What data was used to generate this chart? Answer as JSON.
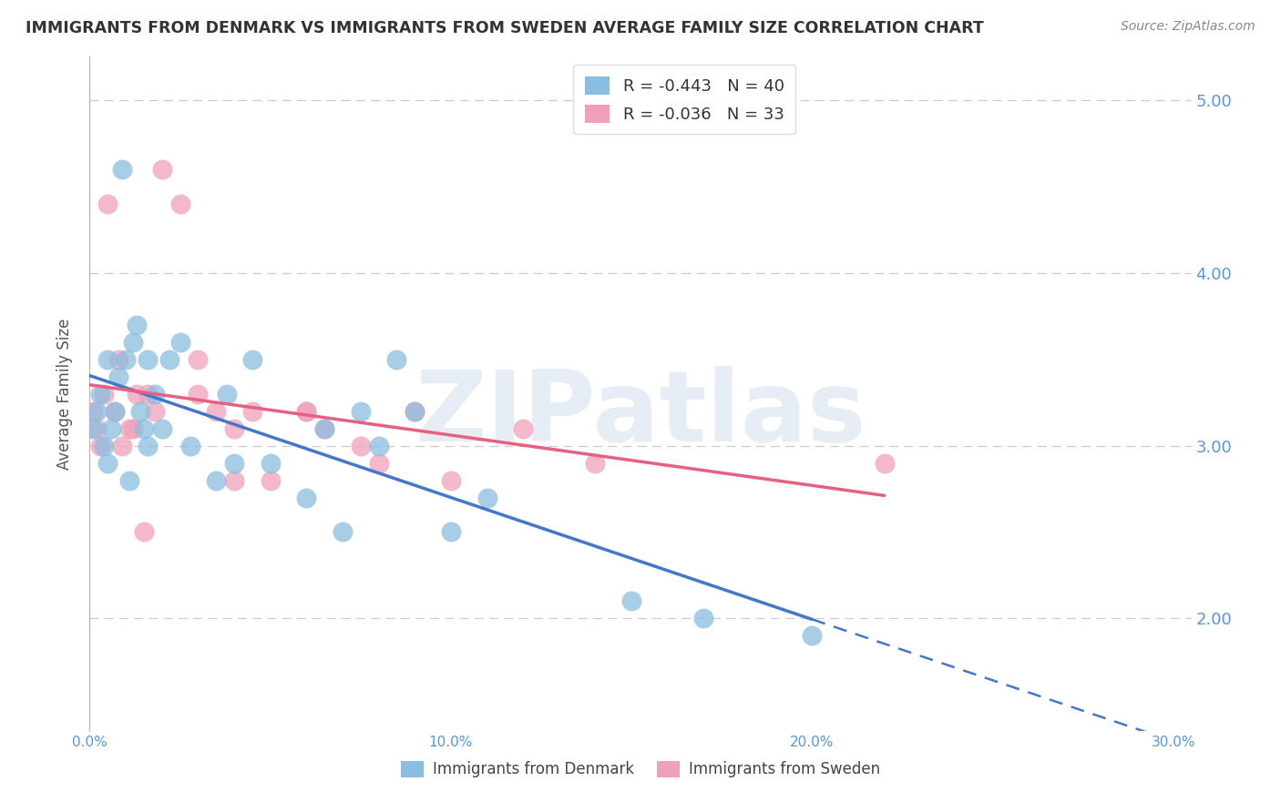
{
  "title": "IMMIGRANTS FROM DENMARK VS IMMIGRANTS FROM SWEDEN AVERAGE FAMILY SIZE CORRELATION CHART",
  "source": "Source: ZipAtlas.com",
  "ylabel": "Average Family Size",
  "xlim": [
    0.0,
    0.305
  ],
  "ylim": [
    1.35,
    5.25
  ],
  "yticks": [
    2.0,
    3.0,
    4.0,
    5.0
  ],
  "xticks": [
    0.0,
    0.05,
    0.1,
    0.15,
    0.2,
    0.25,
    0.3
  ],
  "xtick_labels": [
    "0.0%",
    "",
    "10.0%",
    "",
    "20.0%",
    "",
    "30.0%"
  ],
  "ytick_labels": [
    "2.00",
    "3.00",
    "4.00",
    "5.00"
  ],
  "denmark_color": "#8abde0",
  "sweden_color": "#f0a0b8",
  "denmark_line_color": "#4477cc",
  "sweden_line_color": "#e86080",
  "denmark_R": -0.443,
  "denmark_N": 40,
  "sweden_R": -0.036,
  "sweden_N": 33,
  "background_color": "#ffffff",
  "grid_color": "#cccccc",
  "axis_color": "#5599dd",
  "title_color": "#333333",
  "denmark_scatter_x": [
    0.001,
    0.002,
    0.003,
    0.004,
    0.005,
    0.005,
    0.006,
    0.007,
    0.008,
    0.009,
    0.01,
    0.011,
    0.012,
    0.013,
    0.014,
    0.015,
    0.016,
    0.016,
    0.018,
    0.02,
    0.022,
    0.025,
    0.028,
    0.035,
    0.038,
    0.04,
    0.045,
    0.05,
    0.06,
    0.065,
    0.07,
    0.075,
    0.08,
    0.085,
    0.09,
    0.1,
    0.11,
    0.15,
    0.17,
    0.2
  ],
  "denmark_scatter_y": [
    3.1,
    3.2,
    3.3,
    3.0,
    2.9,
    3.5,
    3.1,
    3.2,
    3.4,
    4.6,
    3.5,
    2.8,
    3.6,
    3.7,
    3.2,
    3.1,
    3.0,
    3.5,
    3.3,
    3.1,
    3.5,
    3.6,
    3.0,
    2.8,
    3.3,
    2.9,
    3.5,
    2.9,
    2.7,
    3.1,
    2.5,
    3.2,
    3.0,
    3.5,
    3.2,
    2.5,
    2.7,
    2.1,
    2.0,
    1.9
  ],
  "sweden_scatter_x": [
    0.001,
    0.002,
    0.003,
    0.004,
    0.005,
    0.007,
    0.009,
    0.011,
    0.013,
    0.016,
    0.018,
    0.02,
    0.025,
    0.03,
    0.03,
    0.035,
    0.04,
    0.045,
    0.05,
    0.06,
    0.065,
    0.075,
    0.08,
    0.09,
    0.1,
    0.12,
    0.14,
    0.06,
    0.04,
    0.015,
    0.008,
    0.012,
    0.22
  ],
  "sweden_scatter_y": [
    3.2,
    3.1,
    3.0,
    3.3,
    4.4,
    3.2,
    3.0,
    3.1,
    3.3,
    3.3,
    3.2,
    4.6,
    4.4,
    3.5,
    3.3,
    3.2,
    3.1,
    3.2,
    2.8,
    3.2,
    3.1,
    3.0,
    2.9,
    3.2,
    2.8,
    3.1,
    2.9,
    3.2,
    2.8,
    2.5,
    3.5,
    3.1,
    2.9
  ],
  "legend_label_denmark": "Immigrants from Denmark",
  "legend_label_sweden": "Immigrants from Sweden",
  "watermark": "ZIPatlas",
  "watermark_color": "#c8d8e8"
}
